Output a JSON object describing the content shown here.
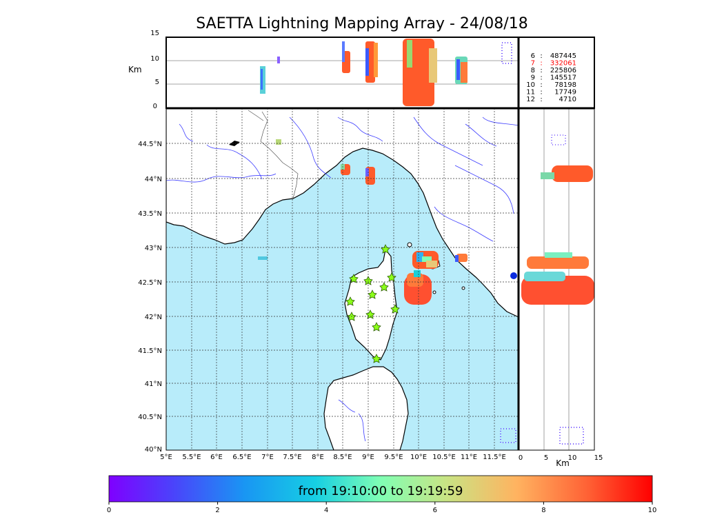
{
  "title": "SAETTA Lightning Mapping Array - 24/08/18",
  "map": {
    "lon_ticks": [
      "5°E",
      "5.5°E",
      "6°E",
      "6.5°E",
      "7°E",
      "7.5°E",
      "8°E",
      "8.5°E",
      "9°E",
      "9.5°E",
      "10°E",
      "10.5°E",
      "11°E",
      "11.5°E"
    ],
    "lat_ticks": [
      "44.5°N",
      "44°N",
      "43.5°N",
      "43°N",
      "42.5°N",
      "42°N",
      "41.5°N",
      "41°N",
      "40.5°N",
      "40°N"
    ],
    "sea_color": "#b8ecfa",
    "land_color": "#ffffff"
  },
  "top_panel": {
    "unit": "Km",
    "y_ticks": [
      "15",
      "10",
      "5",
      "0"
    ]
  },
  "right_panel": {
    "unit": "Km",
    "x_ticks": [
      "0",
      "5",
      "10",
      "15"
    ]
  },
  "legend": [
    {
      "key": "6",
      "value": "487445",
      "color": "#000000"
    },
    {
      "key": "7",
      "value": "332061",
      "color": "#ff0000"
    },
    {
      "key": "8",
      "value": "225806",
      "color": "#000000"
    },
    {
      "key": "9",
      "value": "145517",
      "color": "#000000"
    },
    {
      "key": "10",
      "value": "78198",
      "color": "#000000"
    },
    {
      "key": "11",
      "value": "17749",
      "color": "#000000"
    },
    {
      "key": "12",
      "value": "4710",
      "color": "#000000"
    }
  ],
  "colorbar": {
    "label": "from 19:10:00 to 19:19:59",
    "ticks": [
      "0",
      "2",
      "4",
      "6",
      "8",
      "10"
    ]
  },
  "stations": [
    "station",
    "station",
    "station",
    "station",
    "station",
    "station",
    "station",
    "station",
    "station",
    "station",
    "station",
    "station"
  ]
}
